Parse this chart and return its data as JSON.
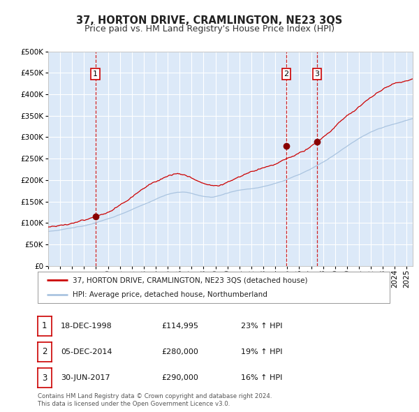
{
  "title": "37, HORTON DRIVE, CRAMLINGTON, NE23 3QS",
  "subtitle": "Price paid vs. HM Land Registry's House Price Index (HPI)",
  "hpi_label": "HPI: Average price, detached house, Northumberland",
  "property_label": "37, HORTON DRIVE, CRAMLINGTON, NE23 3QS (detached house)",
  "footer1": "Contains HM Land Registry data © Crown copyright and database right 2024.",
  "footer2": "This data is licensed under the Open Government Licence v3.0.",
  "transactions": [
    {
      "num": 1,
      "date": "18-DEC-1998",
      "price": 114995,
      "pct": "23%",
      "dir": "↑",
      "x": 1998.96
    },
    {
      "num": 2,
      "date": "05-DEC-2014",
      "price": 280000,
      "pct": "19%",
      "dir": "↑",
      "x": 2014.92
    },
    {
      "num": 3,
      "date": "30-JUN-2017",
      "price": 290000,
      "pct": "16%",
      "dir": "↑",
      "x": 2017.5
    }
  ],
  "ylim": [
    0,
    500000
  ],
  "yticks": [
    0,
    50000,
    100000,
    150000,
    200000,
    250000,
    300000,
    350000,
    400000,
    450000,
    500000
  ],
  "xlim_start": 1995.0,
  "xlim_end": 2025.5,
  "background_color": "#dce9f8",
  "hpi_color": "#aac4e0",
  "property_color": "#cc0000",
  "marker_color": "#880000",
  "vline_color": "#cc0000",
  "grid_color": "#ffffff",
  "title_fontsize": 10.5,
  "subtitle_fontsize": 9,
  "tick_fontsize": 7.5
}
